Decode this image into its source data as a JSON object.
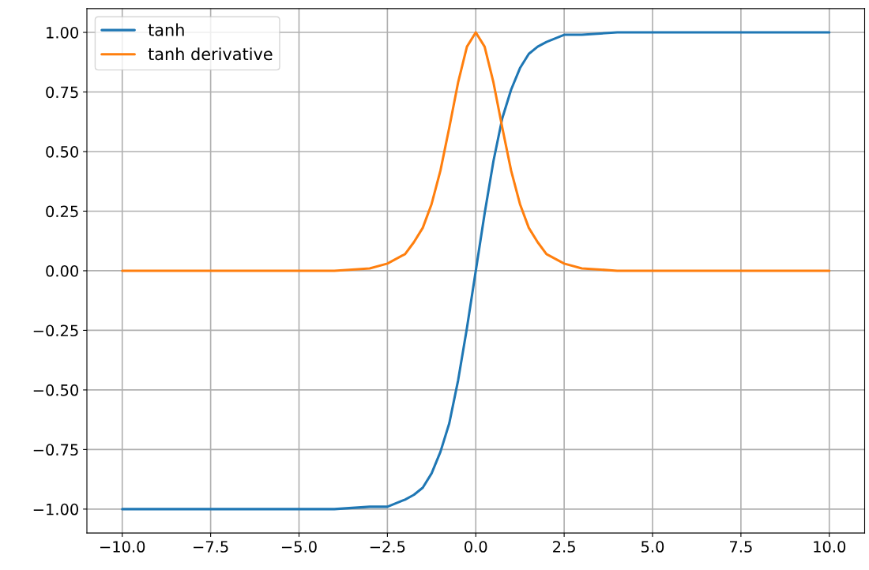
{
  "chart_data": {
    "type": "line",
    "x": [
      -10,
      -5,
      -4,
      -3,
      -2.5,
      -2,
      -1.75,
      -1.5,
      -1.25,
      -1,
      -0.75,
      -0.5,
      -0.25,
      0,
      0.25,
      0.5,
      0.75,
      1,
      1.25,
      1.5,
      1.75,
      2,
      2.5,
      3,
      4,
      5,
      10
    ],
    "series": [
      {
        "name": "tanh",
        "color": "#1f77b4",
        "values": [
          -1.0,
          -1.0,
          -1.0,
          -0.99,
          -0.99,
          -0.96,
          -0.94,
          -0.91,
          -0.85,
          -0.76,
          -0.64,
          -0.46,
          -0.24,
          0.0,
          0.24,
          0.46,
          0.64,
          0.76,
          0.85,
          0.91,
          0.94,
          0.96,
          0.99,
          0.99,
          1.0,
          1.0,
          1.0
        ]
      },
      {
        "name": "tanh derivative",
        "color": "#ff7f0e",
        "values": [
          0.0,
          0.0,
          0.0,
          0.01,
          0.03,
          0.07,
          0.12,
          0.18,
          0.28,
          0.42,
          0.6,
          0.79,
          0.94,
          1.0,
          0.94,
          0.79,
          0.6,
          0.42,
          0.28,
          0.18,
          0.12,
          0.07,
          0.03,
          0.01,
          0.0,
          0.0,
          0.0
        ]
      }
    ],
    "xlim": [
      -11,
      11
    ],
    "ylim": [
      -1.1,
      1.1
    ],
    "xticks": [
      {
        "value": -10,
        "label": "−10.0"
      },
      {
        "value": -7.5,
        "label": "−7.5"
      },
      {
        "value": -5,
        "label": "−5.0"
      },
      {
        "value": -2.5,
        "label": "−2.5"
      },
      {
        "value": 0,
        "label": "0.0"
      },
      {
        "value": 2.5,
        "label": "2.5"
      },
      {
        "value": 5,
        "label": "5.0"
      },
      {
        "value": 7.5,
        "label": "7.5"
      },
      {
        "value": 10,
        "label": "10.0"
      }
    ],
    "yticks": [
      {
        "value": -1,
        "label": "−1.00"
      },
      {
        "value": -0.75,
        "label": "−0.75"
      },
      {
        "value": -0.5,
        "label": "−0.50"
      },
      {
        "value": -0.25,
        "label": "−0.25"
      },
      {
        "value": 0,
        "label": "0.00"
      },
      {
        "value": 0.25,
        "label": "0.25"
      },
      {
        "value": 0.5,
        "label": "0.50"
      },
      {
        "value": 0.75,
        "label": "0.75"
      },
      {
        "value": 1,
        "label": "1.00"
      }
    ],
    "grid": true,
    "legend": "top left"
  }
}
